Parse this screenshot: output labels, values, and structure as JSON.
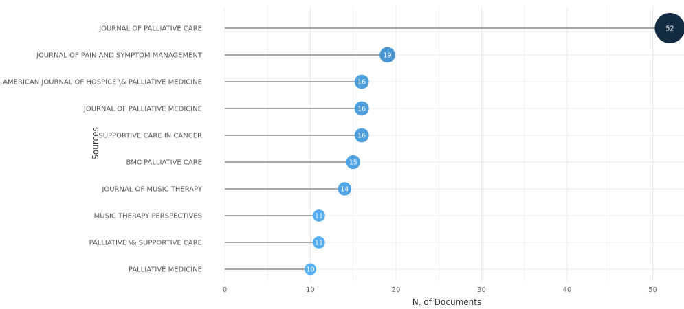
{
  "chart_data": {
    "type": "lollipop",
    "xlabel": "N. of Documents",
    "ylabel": "Sources",
    "xlim": [
      0,
      55
    ],
    "xticks": [
      "0",
      "10",
      "20",
      "30",
      "40",
      "50"
    ],
    "grid": true,
    "categories": [
      "JOURNAL OF PALLIATIVE CARE",
      "JOURNAL OF PAIN AND SYMPTOM MANAGEMENT",
      "AMERICAN JOURNAL OF HOSPICE \\& PALLIATIVE MEDICINE",
      "JOURNAL OF PALLIATIVE MEDICINE",
      "SUPPORTIVE CARE IN CANCER",
      "BMC PALLIATIVE CARE",
      "JOURNAL OF MUSIC THERAPY",
      "MUSIC THERAPY PERSPECTIVES",
      "PALLIATIVE \\& SUPPORTIVE CARE",
      "PALLIATIVE MEDICINE"
    ],
    "values": [
      52,
      19,
      16,
      16,
      16,
      15,
      14,
      11,
      11,
      10
    ],
    "colors": {
      "low": "#56B1F7",
      "high": "#132B43",
      "stem": "#8c8c8c",
      "grid": "#e8e8e8"
    }
  }
}
